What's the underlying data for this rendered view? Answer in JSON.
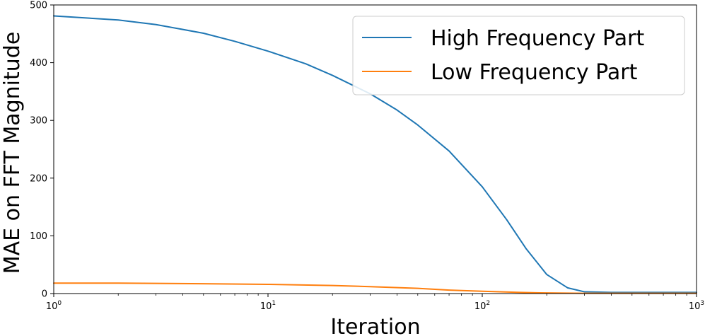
{
  "chart_data": {
    "type": "line",
    "title": "",
    "xlabel": "Iteration",
    "ylabel": "MAE on FFT Magnitude",
    "xscale": "log",
    "xlim": [
      1,
      1000
    ],
    "ylim": [
      0,
      500
    ],
    "grid": false,
    "legend_position": "top-right",
    "x_ticks": [
      {
        "value": 1,
        "base": "10",
        "exp": "0"
      },
      {
        "value": 10,
        "base": "10",
        "exp": "1"
      },
      {
        "value": 100,
        "base": "10",
        "exp": "2"
      },
      {
        "value": 1000,
        "base": "10",
        "exp": "3"
      }
    ],
    "y_ticks": [
      0,
      100,
      200,
      300,
      400,
      500
    ],
    "series": [
      {
        "name": "High Frequency Part",
        "color": "#1f77b4",
        "points": [
          [
            1,
            481
          ],
          [
            2,
            474
          ],
          [
            3,
            466
          ],
          [
            5,
            451
          ],
          [
            7,
            437
          ],
          [
            10,
            420
          ],
          [
            15,
            398
          ],
          [
            20,
            378
          ],
          [
            30,
            346
          ],
          [
            40,
            318
          ],
          [
            50,
            292
          ],
          [
            70,
            247
          ],
          [
            100,
            185
          ],
          [
            130,
            128
          ],
          [
            160,
            78
          ],
          [
            200,
            33
          ],
          [
            250,
            10
          ],
          [
            300,
            3
          ],
          [
            400,
            2
          ],
          [
            600,
            2
          ],
          [
            1000,
            2
          ]
        ]
      },
      {
        "name": "Low Frequency Part",
        "color": "#ff7f0e",
        "points": [
          [
            1,
            18
          ],
          [
            2,
            18
          ],
          [
            5,
            17
          ],
          [
            10,
            16
          ],
          [
            20,
            14
          ],
          [
            30,
            12
          ],
          [
            50,
            9
          ],
          [
            70,
            6
          ],
          [
            100,
            4
          ],
          [
            150,
            2
          ],
          [
            200,
            1
          ],
          [
            300,
            0.5
          ],
          [
            1000,
            0.5
          ]
        ]
      }
    ]
  }
}
